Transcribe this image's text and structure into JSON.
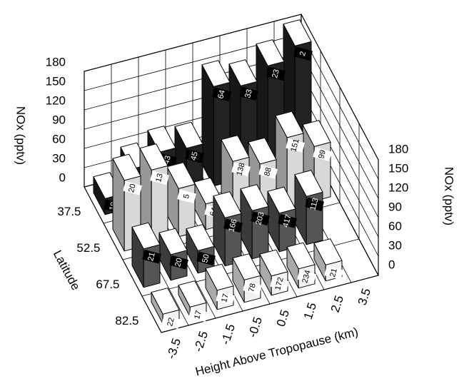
{
  "chart_data": {
    "type": "bar3d",
    "zlabel": "NOx (pptv)",
    "xlabel": "Height Above Tropopause (km)",
    "rowlabel": "Latitude",
    "categories": [
      "-3.5",
      "-2.5",
      "-1.5",
      "-0.5",
      "0.5",
      "1.5",
      "2.5",
      "3.5"
    ],
    "series": [
      {
        "name": "37.5",
        "color": "#222222",
        "values": [
          25,
          60,
          75,
          70,
          155,
          145,
          165,
          185
        ],
        "counts": [
          18,
          20,
          43,
          45,
          64,
          33,
          23,
          2
        ]
      },
      {
        "name": "52.5",
        "color": "#d8d8d8",
        "values": [
          110,
          115,
          75,
          40,
          95,
          80,
          110,
          85
        ],
        "counts": [
          20,
          13,
          5,
          64,
          138,
          88,
          151,
          99
        ]
      },
      {
        "name": "67.5",
        "color": "#555555",
        "values": [
          60,
          40,
          35,
          75,
          75,
          60,
          75,
          null
        ],
        "counts": [
          21,
          20,
          50,
          166,
          203,
          417,
          113,
          null
        ]
      },
      {
        "name": "82.5",
        "color": "#f2f2f2",
        "values": [
          15,
          15,
          30,
          35,
          30,
          30,
          25,
          null
        ],
        "counts": [
          22,
          17,
          17,
          78,
          172,
          234,
          21,
          null
        ]
      }
    ],
    "zlim": [
      0,
      180
    ],
    "zticks": [
      0,
      30,
      60,
      90,
      120,
      150,
      180
    ],
    "grid": true
  }
}
